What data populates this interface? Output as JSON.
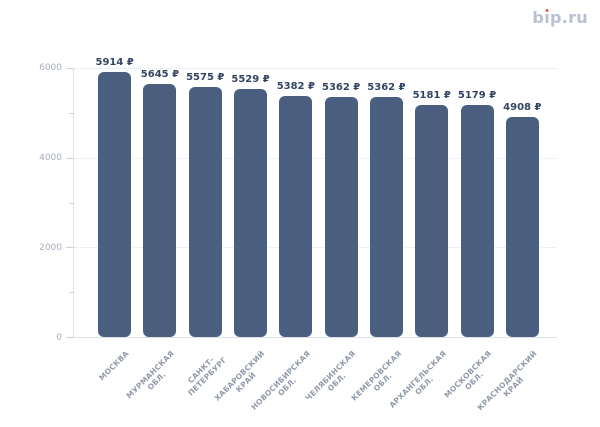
{
  "logo": {
    "text": "bip.ru"
  },
  "colors": {
    "bar": "#4a5f80",
    "value_label": "#344563",
    "axis_label": "#9199ab",
    "y_axis_label": "#a6adbd",
    "gridline": "#dfe3ea",
    "axis_line": "#dcdfe6",
    "logo_text": "#b9c0d2",
    "logo_dot": "#e8564c",
    "background": "#ffffff"
  },
  "chart_data": {
    "type": "bar",
    "title": "",
    "xlabel": "",
    "ylabel": "",
    "legend": "none",
    "grid": "horizontal dotted lines at labeled y ticks",
    "ylim": [
      0,
      6000
    ],
    "yticks": [
      {
        "value": 0,
        "label": "0"
      },
      {
        "value": 2000,
        "label": "2000"
      },
      {
        "value": 4000,
        "label": "4000"
      },
      {
        "value": 6000,
        "label": "6000"
      }
    ],
    "minor_yticks": [
      1000,
      3000,
      5000
    ],
    "bar_color": "#4a5f80",
    "categories": [
      "МОСКВА",
      "МУРМАНСКАЯ\nОБЛ.",
      "САНКТ-\nПЕТЕРБУРГ",
      "ХАБАРОВСКИЙ\nКРАЙ",
      "НОВОСИБИРСКАЯ\nОБЛ.",
      "ЧЕЛЯБИНСКАЯ\nОБЛ.",
      "КЕМЕРОВСКАЯ\nОБЛ.",
      "АРХАНГЕЛЬСКАЯ\nОБЛ.",
      "МОСКОВСКАЯ\nОБЛ.",
      "КРАСНОДАРСКИЙ\nКРАЙ"
    ],
    "values": [
      5914,
      5645,
      5575,
      5529,
      5382,
      5362,
      5362,
      5181,
      5179,
      4908
    ],
    "value_labels": [
      "5914 ₽",
      "5645 ₽",
      "5575 ₽",
      "5529 ₽",
      "5382 ₽",
      "5362 ₽",
      "5362 ₽",
      "5181 ₽",
      "5179 ₽",
      "4908 ₽"
    ]
  }
}
